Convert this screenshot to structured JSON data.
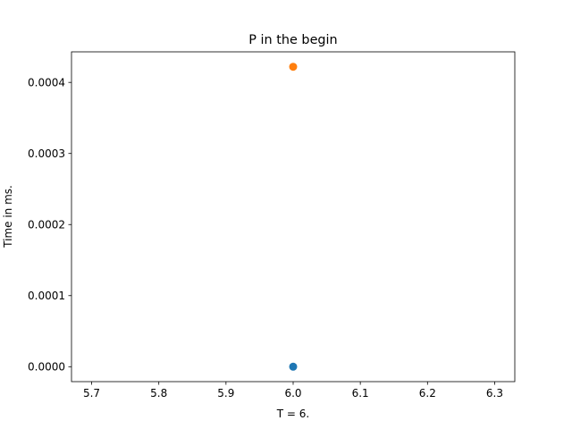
{
  "chart_data": {
    "type": "scatter",
    "title": "P in the begin",
    "xlabel": "T = 6.",
    "ylabel": "Time in ms.",
    "xlim": [
      5.67,
      6.33
    ],
    "ylim": [
      -2.1e-05,
      0.000443
    ],
    "x_ticks": [
      "5.7",
      "5.8",
      "5.9",
      "6.0",
      "6.1",
      "6.2",
      "6.3"
    ],
    "y_ticks": [
      "0.0000",
      "0.0001",
      "0.0002",
      "0.0003",
      "0.0004"
    ],
    "grid": false,
    "series": [
      {
        "color": "#1f77b4",
        "points": [
          {
            "x": 6.0,
            "y": 0.0
          }
        ]
      },
      {
        "color": "#ff7f0e",
        "points": [
          {
            "x": 6.0,
            "y": 0.000422
          }
        ]
      }
    ]
  }
}
